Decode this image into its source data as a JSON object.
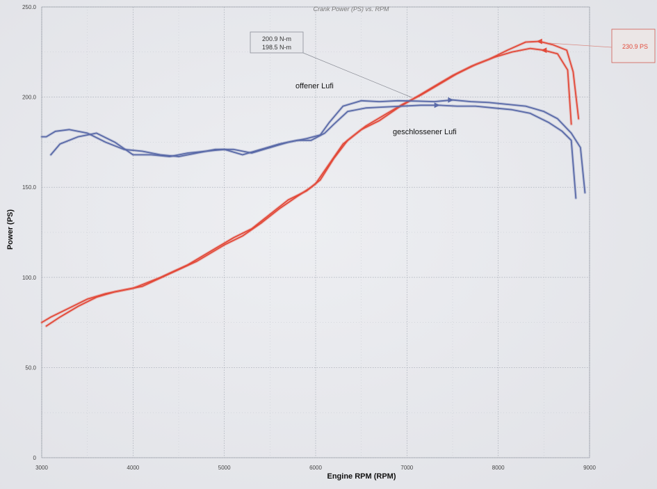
{
  "chart_data": {
    "type": "line",
    "title": "Crank Power (PS) vs. RPM",
    "xlabel": "Engine RPM (RPM)",
    "ylabel": "Power (PS)",
    "xlim": [
      3000,
      9000
    ],
    "ylim": [
      0,
      250
    ],
    "x_ticks": [
      "3000",
      "4000",
      "5000",
      "6000",
      "7000",
      "8000",
      "9000"
    ],
    "y_ticks": [
      "0",
      "50.0",
      "100.0",
      "150.0",
      "200.0",
      "250.0"
    ],
    "grid": true,
    "value_box": [
      "200.9 N-m",
      "198.5 N-m"
    ],
    "peak_label": "230.9 PS",
    "annotations": {
      "open": "offener Lufi",
      "closed": "geschlossener Lufi"
    },
    "colors": {
      "power": "#e24a3a",
      "torque": "#5a6aa8"
    },
    "series": [
      {
        "kind": "power",
        "color": "#e24a3a",
        "x": [
          3000,
          3100,
          3300,
          3500,
          3700,
          4000,
          4300,
          4600,
          4900,
          5100,
          5300,
          5500,
          5700,
          5900,
          6000,
          6150,
          6300,
          6500,
          6700,
          6900,
          7100,
          7300,
          7500,
          7700,
          7900,
          8100,
          8300,
          8450,
          8600,
          8750,
          8820,
          8880
        ],
        "y": [
          75,
          78,
          83,
          88,
          91,
          94,
          100,
          107,
          116,
          122,
          127,
          135,
          143,
          148,
          152,
          163,
          174,
          182,
          187,
          194,
          200,
          206,
          212,
          217,
          221,
          226,
          230.5,
          230.9,
          229,
          226,
          214,
          188
        ]
      },
      {
        "kind": "power",
        "color": "#e24a3a",
        "x": [
          3050,
          3200,
          3400,
          3600,
          3800,
          4100,
          4400,
          4700,
          5000,
          5200,
          5400,
          5600,
          5800,
          5950,
          6050,
          6200,
          6350,
          6550,
          6750,
          6950,
          7150,
          7350,
          7550,
          7750,
          7950,
          8150,
          8350,
          8500,
          8650,
          8760,
          8800
        ],
        "y": [
          73,
          78,
          84,
          89,
          92,
          95,
          102,
          109,
          118,
          123,
          130,
          138,
          145,
          150,
          154,
          166,
          176,
          184,
          190,
          196,
          201,
          207,
          213,
          218,
          222,
          225,
          227,
          226,
          224,
          215,
          185
        ]
      },
      {
        "kind": "torque",
        "color": "#5a6aa8",
        "x": [
          3000,
          3050,
          3150,
          3300,
          3500,
          3700,
          3900,
          4100,
          4300,
          4500,
          4700,
          4900,
          5100,
          5300,
          5500,
          5700,
          5900,
          6050,
          6150,
          6300,
          6500,
          6700,
          6900,
          7100,
          7300,
          7500,
          7700,
          7900,
          8100,
          8300,
          8500,
          8650,
          8800,
          8900,
          8950
        ],
        "y": [
          178,
          178,
          181,
          182,
          180,
          175,
          171,
          170,
          168,
          167,
          169,
          171,
          171,
          169,
          172,
          175,
          177,
          179,
          186,
          195,
          198,
          197.5,
          198,
          197.8,
          197.5,
          198.4,
          197.5,
          197,
          196,
          195,
          192,
          188,
          180,
          172,
          147
        ]
      },
      {
        "kind": "torque",
        "color": "#5a6aa8",
        "x": [
          3100,
          3200,
          3400,
          3600,
          3800,
          4000,
          4200,
          4400,
          4600,
          4800,
          5000,
          5200,
          5400,
          5600,
          5800,
          5950,
          6100,
          6200,
          6350,
          6550,
          6750,
          6950,
          7150,
          7350,
          7550,
          7750,
          7950,
          8150,
          8350,
          8550,
          8700,
          8800,
          8850
        ],
        "y": [
          168,
          174,
          178,
          180,
          175,
          168,
          168,
          167,
          169,
          170,
          171,
          168,
          171,
          174,
          176,
          176,
          180,
          185,
          192,
          194,
          194.5,
          195,
          195.5,
          195.5,
          195,
          195,
          194,
          193,
          191,
          186,
          181,
          176,
          144
        ]
      }
    ]
  }
}
